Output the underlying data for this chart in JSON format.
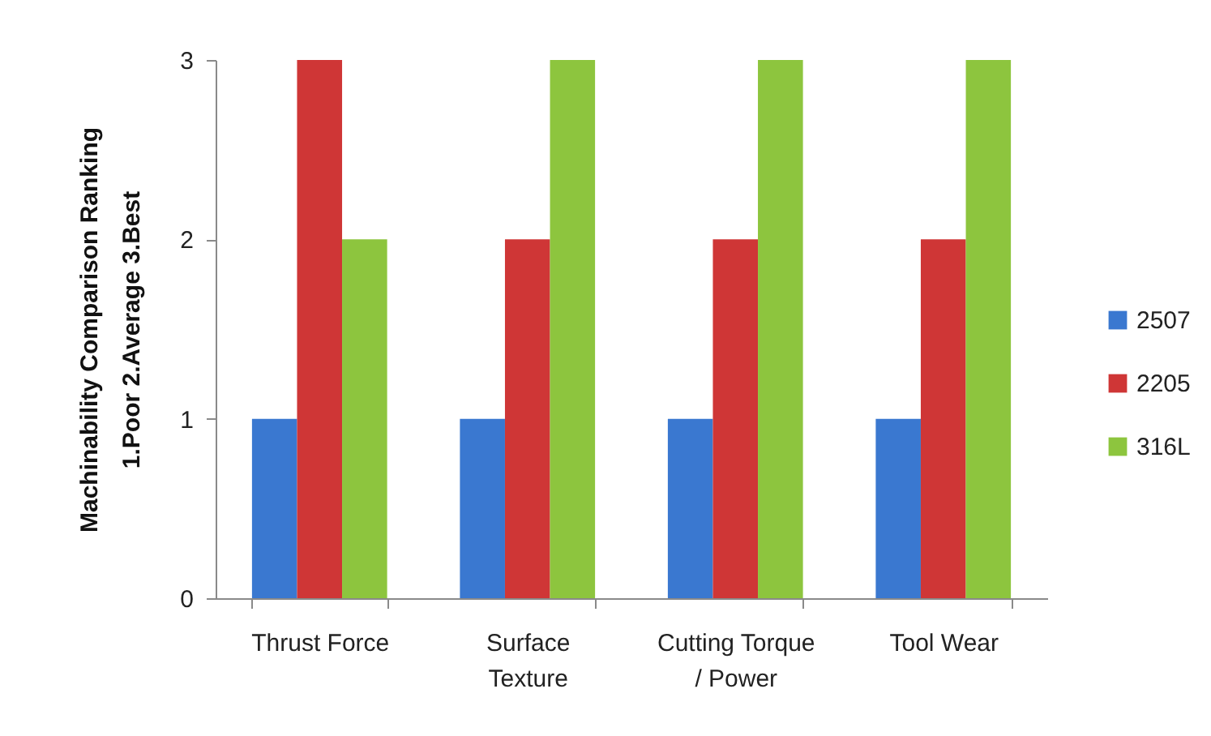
{
  "chart_data": {
    "type": "bar",
    "categories": [
      "Thrust Force",
      "Surface Texture",
      "Cutting Torque / Power",
      "Tool Wear"
    ],
    "series": [
      {
        "name": "2507",
        "color": "#3a78d0",
        "values": [
          1,
          1,
          1,
          1
        ]
      },
      {
        "name": "2205",
        "color": "#cf3636",
        "values": [
          3,
          2,
          2,
          2
        ]
      },
      {
        "name": "316L",
        "color": "#8dc53e",
        "values": [
          2,
          3,
          3,
          3
        ]
      }
    ],
    "ylabel": "Machinability Comparison Ranking\n1.Poor 2.Average 3.Best",
    "ylim": [
      0,
      3
    ],
    "yticks": [
      0,
      1,
      2,
      3
    ],
    "legend": "right"
  }
}
